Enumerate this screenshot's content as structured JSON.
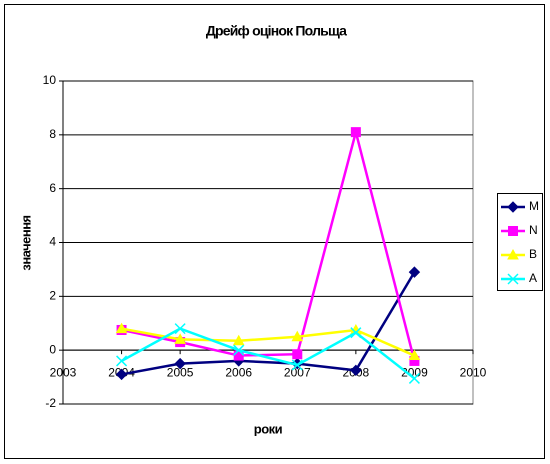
{
  "chart_data": {
    "type": "line",
    "title": "Дрейф оцінок Польща",
    "x_label": "роки",
    "y_label": "значення",
    "x": [
      2004,
      2005,
      2006,
      2007,
      2008,
      2009
    ],
    "series": [
      {
        "name": "M",
        "color": "#000080",
        "marker": "diamond",
        "values": [
          -0.9,
          -0.5,
          -0.4,
          -0.5,
          -0.75,
          2.9
        ]
      },
      {
        "name": "N",
        "color": "#ff00ff",
        "marker": "square",
        "values": [
          0.75,
          0.3,
          -0.2,
          -0.15,
          8.1,
          -0.4
        ]
      },
      {
        "name": "B",
        "color": "#ffff00",
        "marker": "triangle",
        "values": [
          0.8,
          0.4,
          0.35,
          0.5,
          0.75,
          -0.2
        ]
      },
      {
        "name": "A",
        "color": "#00ffff",
        "marker": "x",
        "values": [
          -0.4,
          0.8,
          0.0,
          -0.55,
          0.65,
          -1.05
        ]
      }
    ],
    "xlim": [
      2003,
      2010
    ],
    "xticks": [
      2003,
      2004,
      2005,
      2006,
      2007,
      2008,
      2009,
      2010
    ],
    "ylim": [
      -2,
      10
    ],
    "yticks": [
      -2,
      0,
      2,
      4,
      6,
      8,
      10
    ],
    "grid": true,
    "legend": "right"
  }
}
